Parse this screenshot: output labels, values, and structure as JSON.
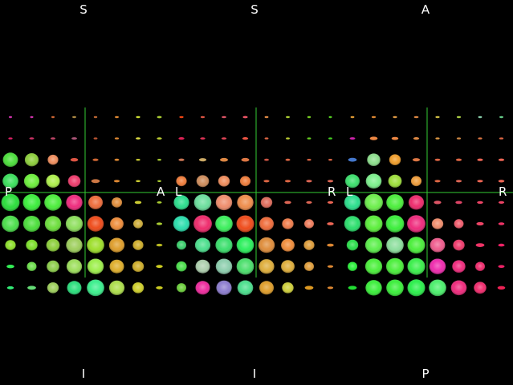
{
  "window_title": "",
  "crosshair_color": "#33cc33",
  "label_color": "#ffffff",
  "views": [
    {
      "name": "sagittal",
      "labels": {
        "top": "S",
        "bottom": "I",
        "left": "P",
        "right": "A"
      },
      "grid": [
        [
          0.14,
          0.15,
          0.16,
          0.2,
          0.18,
          0.2,
          0.22,
          0.25
        ],
        [
          0.22,
          0.24,
          0.25,
          0.28,
          0.2,
          0.22,
          0.24,
          0.26
        ],
        [
          0.78,
          0.72,
          0.55,
          0.4,
          0.3,
          0.25,
          0.22,
          0.2
        ],
        [
          0.82,
          0.8,
          0.72,
          0.65,
          0.45,
          0.3,
          0.24,
          0.2
        ],
        [
          0.95,
          0.92,
          0.9,
          0.85,
          0.75,
          0.55,
          0.35,
          0.25
        ],
        [
          0.9,
          0.88,
          0.85,
          0.88,
          0.85,
          0.7,
          0.5,
          0.3
        ],
        [
          0.55,
          0.6,
          0.7,
          0.85,
          0.9,
          0.8,
          0.55,
          0.32
        ],
        [
          0.4,
          0.5,
          0.65,
          0.8,
          0.85,
          0.75,
          0.6,
          0.35
        ],
        [
          0.35,
          0.45,
          0.6,
          0.75,
          0.9,
          0.8,
          0.6,
          0.35
        ]
      ],
      "colors": [
        [
          "#cc33aa",
          "#cc33aa",
          "#cc6633",
          "#aa8844",
          "#bb6633",
          "#dd8833",
          "#ccdd33",
          "#aacc33"
        ],
        [
          "#dd2266",
          "#cc3366",
          "#bb4466",
          "#aa5577",
          "#bb5533",
          "#dd8833",
          "#dddd44",
          "#bbcc33"
        ],
        [
          "#44dd33",
          "#88cc33",
          "#ee8855",
          "#dd5544",
          "#cc6633",
          "#dd8833",
          "#cccc33",
          "#aacc33"
        ],
        [
          "#33dd55",
          "#66ee33",
          "#aaee44",
          "#ee3366",
          "#cc7744",
          "#dd8833",
          "#cccc33",
          "#aacc33"
        ],
        [
          "#22dd33",
          "#33ee33",
          "#44ee33",
          "#ee2277",
          "#ee6633",
          "#dd8833",
          "#cccc33",
          "#aacc33"
        ],
        [
          "#44dd44",
          "#44dd33",
          "#66dd33",
          "#88dd55",
          "#ee4411",
          "#ee8833",
          "#ccaa33",
          "#aacc33"
        ],
        [
          "#88dd22",
          "#77dd22",
          "#88cc33",
          "#99cc55",
          "#99dd22",
          "#dd9922",
          "#ccaa22",
          "#bbbb22"
        ],
        [
          "#33ee55",
          "#66dd44",
          "#88cc44",
          "#99dd55",
          "#99ee44",
          "#ddaa22",
          "#ccaa22",
          "#cccc22"
        ],
        [
          "#33ee77",
          "#66dd77",
          "#99cc55",
          "#22dd77",
          "#33ee88",
          "#aadd44",
          "#cccc22",
          "#cccc22"
        ]
      ]
    },
    {
      "name": "coronal",
      "labels": {
        "top": "S",
        "bottom": "I",
        "left": "L",
        "right": "R"
      },
      "grid": [
        [
          0.22,
          0.22,
          0.24,
          0.26,
          0.2,
          0.2,
          0.18,
          0.16
        ],
        [
          0.3,
          0.26,
          0.26,
          0.3,
          0.2,
          0.2,
          0.2,
          0.2
        ],
        [
          0.3,
          0.38,
          0.42,
          0.42,
          0.25,
          0.25,
          0.22,
          0.2
        ],
        [
          0.55,
          0.65,
          0.6,
          0.55,
          0.3,
          0.3,
          0.3,
          0.3
        ],
        [
          0.8,
          0.9,
          0.85,
          0.85,
          0.6,
          0.35,
          0.3,
          0.3
        ],
        [
          0.85,
          0.95,
          0.9,
          0.92,
          0.75,
          0.6,
          0.5,
          0.35
        ],
        [
          0.5,
          0.8,
          0.88,
          0.9,
          0.85,
          0.7,
          0.55,
          0.35
        ],
        [
          0.55,
          0.75,
          0.85,
          0.9,
          0.8,
          0.7,
          0.5,
          0.3
        ],
        [
          0.5,
          0.75,
          0.8,
          0.82,
          0.75,
          0.6,
          0.45,
          0.3
        ]
      ],
      "colors": [
        [
          "#ee4411",
          "#dd5544",
          "#dd5566",
          "#ee5566",
          "#dd8844",
          "#aacc33",
          "#77cc22",
          "#55cc22"
        ],
        [
          "#dd2255",
          "#dd3355",
          "#dd4455",
          "#ee5544",
          "#dd6644",
          "#bbcc33",
          "#66cc22",
          "#44cc22"
        ],
        [
          "#cc7755",
          "#ccaa66",
          "#dd8844",
          "#dd7744",
          "#cc5544",
          "#dd6644",
          "#dd6644",
          "#dd6644"
        ],
        [
          "#ee7733",
          "#cc8855",
          "#ee8855",
          "#ee7733",
          "#dd6644",
          "#dd6644",
          "#dd6655",
          "#dd6655"
        ],
        [
          "#22dd88",
          "#66dd99",
          "#ee8866",
          "#ee8844",
          "#dd6655",
          "#dd6655",
          "#dd6655",
          "#ee6655"
        ],
        [
          "#22ddaa",
          "#ee2266",
          "#33ee55",
          "#ee4411",
          "#ee6633",
          "#ee7744",
          "#ee7755",
          "#ee6655"
        ],
        [
          "#33cc66",
          "#44dd88",
          "#33dd66",
          "#22ee55",
          "#dd8833",
          "#ee8833",
          "#dd9933",
          "#dd8833"
        ],
        [
          "#44dd44",
          "#aaccaa",
          "#88ccaa",
          "#44dd66",
          "#ddaa33",
          "#ddaa33",
          "#dd9933",
          "#dd8833"
        ],
        [
          "#66cc33",
          "#ee2299",
          "#8877cc",
          "#44dd88",
          "#dd9922",
          "#cccc33",
          "#dd9922",
          "#dd8833"
        ]
      ]
    },
    {
      "name": "axial",
      "labels": {
        "top": "A",
        "bottom": "P",
        "left": "L",
        "right": "R"
      },
      "grid": [
        [
          0.2,
          0.22,
          0.22,
          0.24,
          0.22,
          0.22,
          0.2,
          0.2
        ],
        [
          0.28,
          0.4,
          0.35,
          0.3,
          0.22,
          0.22,
          0.22,
          0.22
        ],
        [
          0.45,
          0.68,
          0.6,
          0.38,
          0.28,
          0.3,
          0.3,
          0.3
        ],
        [
          0.75,
          0.82,
          0.7,
          0.55,
          0.3,
          0.3,
          0.3,
          0.32
        ],
        [
          0.85,
          0.95,
          0.9,
          0.8,
          0.38,
          0.35,
          0.32,
          0.3
        ],
        [
          0.85,
          0.92,
          0.95,
          0.95,
          0.6,
          0.5,
          0.38,
          0.32
        ],
        [
          0.6,
          0.88,
          0.9,
          0.92,
          0.78,
          0.6,
          0.45,
          0.33
        ],
        [
          0.5,
          0.88,
          0.92,
          0.92,
          0.85,
          0.68,
          0.5,
          0.33
        ],
        [
          0.45,
          0.85,
          0.9,
          0.92,
          0.9,
          0.82,
          0.65,
          0.4
        ]
      ],
      "colors": [
        [
          "#dd9933",
          "#dd8833",
          "#dd9944",
          "#dd8844",
          "#ccbb44",
          "#aacc44",
          "#88ccaa",
          "#66cc88"
        ],
        [
          "#cc22aa",
          "#ee8844",
          "#ee8844",
          "#dd8844",
          "#dd9944",
          "#cc8844",
          "#dd7744",
          "#dd6644"
        ],
        [
          "#4477cc",
          "#88dd88",
          "#ee9922",
          "#dd7744",
          "#dd6644",
          "#dd6644",
          "#ee6655",
          "#ee6655"
        ],
        [
          "#33dd66",
          "#77ee88",
          "#99dd33",
          "#ee9933",
          "#dd6644",
          "#dd6655",
          "#ee6655",
          "#ee6655"
        ],
        [
          "#22dd88",
          "#66ee44",
          "#44ee33",
          "#ee2266",
          "#dd5566",
          "#dd4466",
          "#ee4466",
          "#ee4466"
        ],
        [
          "#22dd66",
          "#55ee33",
          "#33ee33",
          "#ee2277",
          "#ee8866",
          "#ee5566",
          "#ee4466",
          "#ee3366"
        ],
        [
          "#22dd44",
          "#55ee44",
          "#88dd99",
          "#44ee33",
          "#ee5588",
          "#ee3366",
          "#ee3366",
          "#ee2266"
        ],
        [
          "#22ee33",
          "#44ee33",
          "#44ee33",
          "#33ee44",
          "#ee22aa",
          "#ee2277",
          "#ee2266",
          "#ee2266"
        ],
        [
          "#22dd33",
          "#33ee33",
          "#33ee33",
          "#22ee44",
          "#44ee66",
          "#ee2277",
          "#ee2266",
          "#ee2255"
        ]
      ]
    }
  ]
}
